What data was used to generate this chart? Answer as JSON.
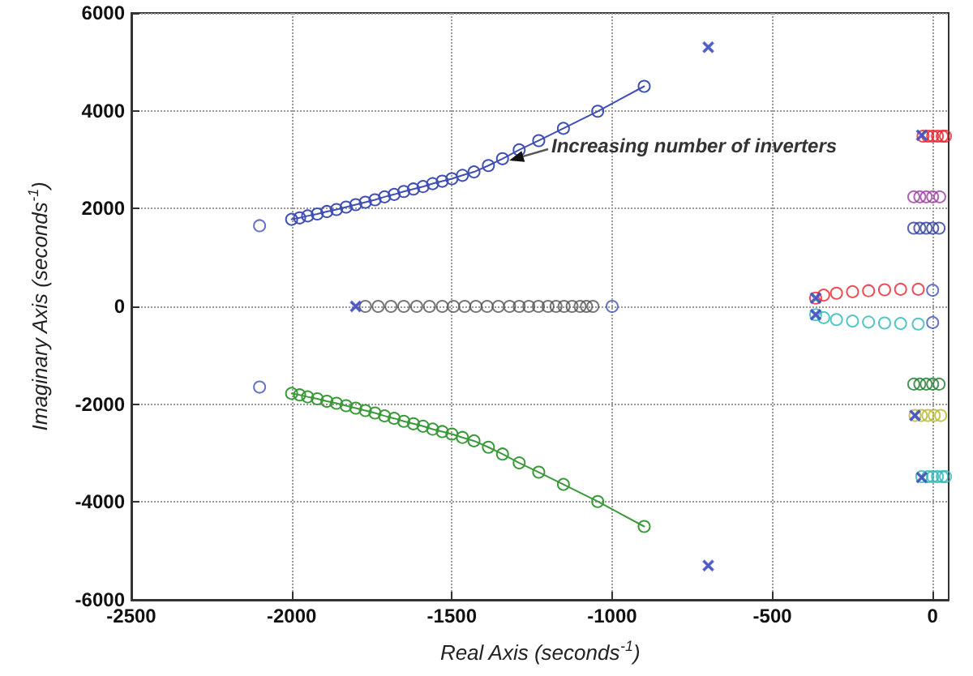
{
  "chart_data": {
    "type": "line",
    "xlabel": "Real Axis (seconds$^{-1}$)",
    "ylabel": "Imaginary Axis (seconds$^{-1}$)",
    "xlim": [
      -2500,
      50
    ],
    "xticks": [
      -2500,
      -2000,
      -1500,
      -1000,
      -500,
      0
    ],
    "ylim": [
      -6000,
      6000
    ],
    "yticks": [
      -6000,
      -4000,
      -2000,
      0,
      2000,
      4000,
      6000
    ],
    "grid": true,
    "annotations": [
      "Increasing number of inverters"
    ],
    "series": [
      {
        "marker": "circle",
        "color": "#3f4fb5",
        "x": [
          -900,
          -1045,
          -1152,
          -1229,
          -1290,
          -1342,
          -1386,
          -1431,
          -1467,
          -1500,
          -1530,
          -1560,
          -1590,
          -1620,
          -1650,
          -1680,
          -1710,
          -1740,
          -1770,
          -1800,
          -1830,
          -1860,
          -1890,
          -1920,
          -1950,
          -1975,
          -2000
        ],
        "values": [
          4500,
          3990,
          3640,
          3390,
          3200,
          3020,
          2880,
          2750,
          2680,
          2610,
          2560,
          2510,
          2450,
          2400,
          2350,
          2290,
          2240,
          2180,
          2130,
          2080,
          2030,
          1980,
          1940,
          1890,
          1850,
          1810,
          1780
        ]
      },
      {
        "marker": "circle",
        "color": "#3a9a3a",
        "x": [
          -900,
          -1045,
          -1152,
          -1229,
          -1290,
          -1342,
          -1386,
          -1431,
          -1467,
          -1500,
          -1530,
          -1560,
          -1590,
          -1620,
          -1650,
          -1680,
          -1710,
          -1740,
          -1770,
          -1800,
          -1830,
          -1860,
          -1890,
          -1920,
          -1950,
          -1975,
          -2000
        ],
        "values": [
          -4500,
          -3990,
          -3640,
          -3390,
          -3200,
          -3020,
          -2880,
          -2750,
          -2680,
          -2610,
          -2560,
          -2510,
          -2450,
          -2400,
          -2350,
          -2290,
          -2240,
          -2180,
          -2130,
          -2080,
          -2030,
          -1980,
          -1940,
          -1890,
          -1850,
          -1810,
          -1780
        ]
      },
      {
        "type": "scatter",
        "marker": "circle",
        "color": "#555555",
        "x": [
          -1770,
          -1730,
          -1690,
          -1650,
          -1610,
          -1570,
          -1530,
          -1495,
          -1460,
          -1425,
          -1390,
          -1355,
          -1320,
          -1290,
          -1260,
          -1230,
          -1200,
          -1175,
          -1150,
          -1125,
          -1100,
          -1080,
          -1060
        ],
        "values": [
          0,
          0,
          0,
          0,
          0,
          0,
          0,
          0,
          0,
          0,
          0,
          0,
          0,
          0,
          0,
          0,
          0,
          0,
          0,
          0,
          0,
          0,
          0
        ]
      },
      {
        "type": "scatter",
        "marker": "circle",
        "color": "#e8202a",
        "x": [
          -30,
          -15,
          0,
          15,
          30,
          40
        ],
        "values": [
          3480,
          3480,
          3480,
          3480,
          3480,
          3480
        ]
      },
      {
        "type": "scatter",
        "marker": "circle",
        "color": "#9b3fa0",
        "x": [
          -59,
          -40,
          -20,
          0,
          22
        ],
        "values": [
          2240,
          2240,
          2240,
          2240,
          2240
        ]
      },
      {
        "type": "scatter",
        "marker": "circle",
        "color": "#2e3f9a",
        "x": [
          -59,
          -40,
          -20,
          0,
          20
        ],
        "values": [
          1600,
          1600,
          1600,
          1600,
          1600
        ]
      },
      {
        "type": "scatter",
        "marker": "circle",
        "color": "#e8202a",
        "x": [
          -365,
          -340,
          -300,
          -250,
          -200,
          -150,
          -100,
          -45
        ],
        "values": [
          170,
          230,
          270,
          300,
          320,
          340,
          350,
          350
        ]
      },
      {
        "type": "scatter",
        "marker": "circle",
        "color": "#2ab5b5",
        "x": [
          -365,
          -340,
          -300,
          -250,
          -200,
          -150,
          -100,
          -45
        ],
        "values": [
          -170,
          -230,
          -270,
          -300,
          -320,
          -340,
          -350,
          -360
        ]
      },
      {
        "type": "scatter",
        "marker": "circle",
        "color": "#1e7b2e",
        "x": [
          -59,
          -40,
          -20,
          0,
          20
        ],
        "values": [
          -1590,
          -1590,
          -1590,
          -1590,
          -1590
        ]
      },
      {
        "type": "scatter",
        "marker": "circle",
        "color": "#b8b82a",
        "x": [
          -55,
          -35,
          -15,
          5,
          25
        ],
        "values": [
          -2230,
          -2230,
          -2230,
          -2230,
          -2230
        ]
      },
      {
        "type": "scatter",
        "marker": "circle",
        "color": "#2ab5b5",
        "x": [
          -34,
          -15,
          0,
          15,
          30,
          40
        ],
        "values": [
          -3480,
          -3480,
          -3480,
          -3480,
          -3480,
          -3480
        ]
      },
      {
        "type": "scatter",
        "marker": "cross",
        "color": "#4050c0",
        "x": [
          -700,
          -700,
          -1800,
          -365,
          -365,
          -34,
          -34,
          -55
        ],
        "values": [
          5300,
          -5300,
          0,
          170,
          -170,
          3500,
          -3500,
          -2230
        ]
      },
      {
        "type": "scatter",
        "marker": "circle",
        "color": "#4050c0",
        "x": [
          -2100,
          -2100,
          -1000,
          0,
          0
        ],
        "values": [
          1650,
          -1650,
          0,
          330,
          -330
        ]
      }
    ]
  }
}
